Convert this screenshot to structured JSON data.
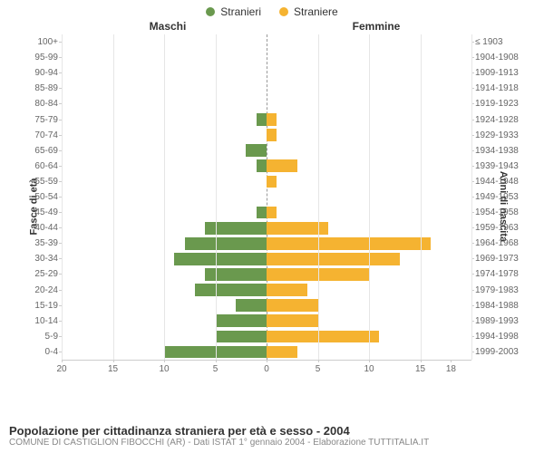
{
  "legend": {
    "male": {
      "label": "Stranieri",
      "color": "#6a994e"
    },
    "female": {
      "label": "Straniere",
      "color": "#f5b331"
    }
  },
  "column_titles": {
    "male": "Maschi",
    "female": "Femmine"
  },
  "axis_titles": {
    "left": "Fasce di età",
    "right": "Anni di nascita"
  },
  "chart": {
    "type": "population-pyramid",
    "x_max": 20,
    "x_ticks_left": [
      20,
      15,
      10,
      5,
      0
    ],
    "x_ticks_right": [
      0,
      5,
      10,
      15,
      18
    ],
    "grid_major": [
      5,
      10,
      15,
      20
    ],
    "background_color": "#ffffff",
    "grid_color": "#e6e6e6",
    "centerline_color": "#999999",
    "label_fontsize": 10,
    "bar_colors": {
      "male": "#6a994e",
      "female": "#f5b331"
    },
    "rows": [
      {
        "age": "100+",
        "birth": "≤ 1903",
        "male": 0,
        "female": 0
      },
      {
        "age": "95-99",
        "birth": "1904-1908",
        "male": 0,
        "female": 0
      },
      {
        "age": "90-94",
        "birth": "1909-1913",
        "male": 0,
        "female": 0
      },
      {
        "age": "85-89",
        "birth": "1914-1918",
        "male": 0,
        "female": 0
      },
      {
        "age": "80-84",
        "birth": "1919-1923",
        "male": 0,
        "female": 0
      },
      {
        "age": "75-79",
        "birth": "1924-1928",
        "male": 1,
        "female": 1
      },
      {
        "age": "70-74",
        "birth": "1929-1933",
        "male": 0,
        "female": 1
      },
      {
        "age": "65-69",
        "birth": "1934-1938",
        "male": 2,
        "female": 0
      },
      {
        "age": "60-64",
        "birth": "1939-1943",
        "male": 1,
        "female": 3
      },
      {
        "age": "55-59",
        "birth": "1944-1948",
        "male": 0,
        "female": 1
      },
      {
        "age": "50-54",
        "birth": "1949-1953",
        "male": 0,
        "female": 0
      },
      {
        "age": "45-49",
        "birth": "1954-1958",
        "male": 1,
        "female": 1
      },
      {
        "age": "40-44",
        "birth": "1959-1963",
        "male": 6,
        "female": 6
      },
      {
        "age": "35-39",
        "birth": "1964-1968",
        "male": 8,
        "female": 16
      },
      {
        "age": "30-34",
        "birth": "1969-1973",
        "male": 9,
        "female": 13
      },
      {
        "age": "25-29",
        "birth": "1974-1978",
        "male": 6,
        "female": 10
      },
      {
        "age": "20-24",
        "birth": "1979-1983",
        "male": 7,
        "female": 4
      },
      {
        "age": "15-19",
        "birth": "1984-1988",
        "male": 3,
        "female": 5
      },
      {
        "age": "10-14",
        "birth": "1989-1993",
        "male": 5,
        "female": 5
      },
      {
        "age": "5-9",
        "birth": "1994-1998",
        "male": 5,
        "female": 11
      },
      {
        "age": "0-4",
        "birth": "1999-2003",
        "male": 10,
        "female": 3
      }
    ]
  },
  "caption": {
    "title": "Popolazione per cittadinanza straniera per età e sesso - 2004",
    "subtitle": "COMUNE DI CASTIGLION FIBOCCHI (AR) - Dati ISTAT 1° gennaio 2004 - Elaborazione TUTTITALIA.IT"
  }
}
